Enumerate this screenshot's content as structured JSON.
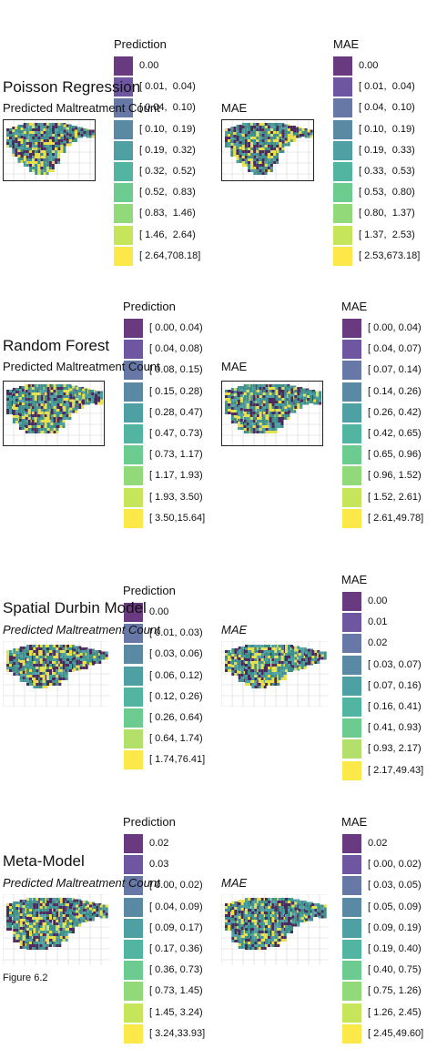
{
  "figure_caption": "Figure 6.2",
  "chart_data": [
    {
      "type": "choropleth-map",
      "model": "Poisson Regression",
      "maps": [
        {
          "title": "Predicted Maltreatment Count",
          "italic": false,
          "boxed": true,
          "legend": {
            "title": "Prediction",
            "bins": [
              "0.00",
              "[ 0.01,  0.04)",
              "[ 0.04,  0.10)",
              "[ 0.10,  0.19)",
              "[ 0.19,  0.32)",
              "[ 0.32,  0.52)",
              "[ 0.52,  0.83)",
              "[ 0.83,  1.46)",
              "[ 1.46,  2.64)",
              "[ 2.64,708.18]"
            ]
          }
        },
        {
          "title": "MAE",
          "italic": false,
          "boxed": true,
          "legend": {
            "title": "MAE",
            "bins": [
              "0.00",
              "[ 0.01,  0.04)",
              "[ 0.04,  0.10)",
              "[ 0.10,  0.19)",
              "[ 0.19,  0.33)",
              "[ 0.33,  0.53)",
              "[ 0.53,  0.80)",
              "[ 0.80,  1.37)",
              "[ 1.37,  2.53)",
              "[ 2.53,673.18]"
            ]
          }
        }
      ]
    },
    {
      "type": "choropleth-map",
      "model": "Random Forest",
      "maps": [
        {
          "title": "Predicted Maltreatment Count",
          "italic": false,
          "boxed": true,
          "legend": {
            "title": "Prediction",
            "bins": [
              "[ 0.00, 0.04)",
              "[ 0.04, 0.08)",
              "[ 0.08, 0.15)",
              "[ 0.15, 0.28)",
              "[ 0.28, 0.47)",
              "[ 0.47, 0.73)",
              "[ 0.73, 1.17)",
              "[ 1.17, 1.93)",
              "[ 1.93, 3.50)",
              "[ 3.50,15.64]"
            ]
          }
        },
        {
          "title": "MAE",
          "italic": false,
          "boxed": true,
          "legend": {
            "title": "MAE",
            "bins": [
              "[ 0.00, 0.04)",
              "[ 0.04, 0.07)",
              "[ 0.07, 0.14)",
              "[ 0.14, 0.26)",
              "[ 0.26, 0.42)",
              "[ 0.42, 0.65)",
              "[ 0.65, 0.96)",
              "[ 0.96, 1.52)",
              "[ 1.52, 2.61)",
              "[ 2.61,49.78]"
            ]
          }
        }
      ]
    },
    {
      "type": "choropleth-map",
      "model": "Spatial Durbin Model",
      "maps": [
        {
          "title": "Predicted Maltreatment Count",
          "italic": true,
          "boxed": false,
          "legend": {
            "title": "Prediction",
            "bins": [
              "0.00",
              "[ 0.01, 0.03)",
              "[ 0.03, 0.06)",
              "[ 0.06, 0.12)",
              "[ 0.12, 0.26)",
              "[ 0.26, 0.64)",
              "[ 0.64, 1.74)",
              "[ 1.74,76.41]"
            ]
          }
        },
        {
          "title": "MAE",
          "italic": true,
          "boxed": false,
          "legend": {
            "title": "MAE",
            "bins": [
              "0.00",
              "0.01",
              "0.02",
              "[ 0.03, 0.07)",
              "[ 0.07, 0.16)",
              "[ 0.16, 0.41)",
              "[ 0.41, 0.93)",
              "[ 0.93, 2.17)",
              "[ 2.17,49.43]"
            ]
          }
        }
      ]
    },
    {
      "type": "choropleth-map",
      "model": "Meta-Model",
      "maps": [
        {
          "title": "Predicted Maltreatment Count",
          "italic": true,
          "boxed": false,
          "legend": {
            "title": "Prediction",
            "bins": [
              "0.02",
              "0.03",
              "[ 0.00, 0.02)",
              "[ 0.04, 0.09)",
              "[ 0.09, 0.17)",
              "[ 0.17, 0.36)",
              "[ 0.36, 0.73)",
              "[ 0.73, 1.45)",
              "[ 1.45, 3.24)",
              "[ 3.24,33.93]"
            ]
          }
        },
        {
          "title": "MAE",
          "italic": true,
          "boxed": false,
          "legend": {
            "title": "MAE",
            "bins": [
              "0.02",
              "[ 0.00, 0.02)",
              "[ 0.03, 0.05)",
              "[ 0.05, 0.09)",
              "[ 0.09, 0.19)",
              "[ 0.19, 0.40)",
              "[ 0.40, 0.75)",
              "[ 0.75, 1.26)",
              "[ 1.26, 2.45)",
              "[ 2.45,49.60]"
            ]
          }
        }
      ]
    }
  ],
  "palettes": {
    "viridis10": [
      "#6a3a80",
      "#6e57a0",
      "#6777a6",
      "#5a8aa3",
      "#4fa0a3",
      "#52b5a1",
      "#6ccb8e",
      "#92d97a",
      "#c6e55a",
      "#fde84a"
    ],
    "viridis8": [
      "#6a3a80",
      "#6777a6",
      "#5a8aa3",
      "#4fa0a3",
      "#52b5a1",
      "#6ccb8e",
      "#b2e06a",
      "#fde84a"
    ],
    "viridis9": [
      "#6a3a80",
      "#6e57a0",
      "#6777a6",
      "#5a8aa3",
      "#4fa0a3",
      "#52b5a1",
      "#6ccb8e",
      "#b2e06a",
      "#fde84a"
    ],
    "map_yellow": "#e8e04a",
    "map_teal": "#3f8f8a",
    "map_purple": "#4b2a5e",
    "map_grid": "#d6d6d6",
    "map_base": "#9aa0a6"
  }
}
